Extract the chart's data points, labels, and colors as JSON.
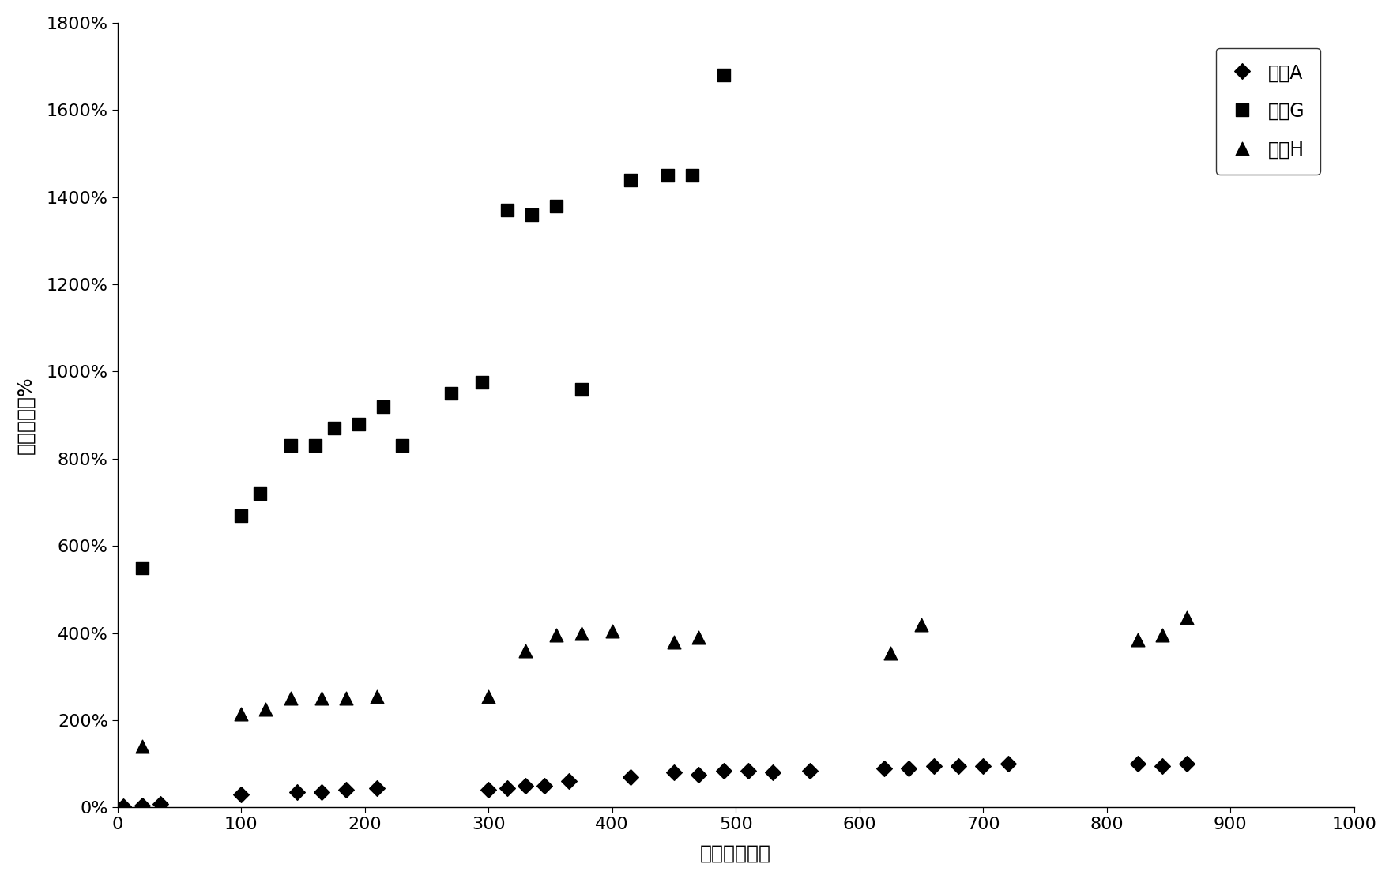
{
  "title": "",
  "xlabel": "时间（小时）",
  "ylabel": "电阱的变化%",
  "xlim": [
    0,
    1000
  ],
  "ylim": [
    0,
    1800
  ],
  "yticks": [
    0,
    200,
    400,
    600,
    800,
    1000,
    1200,
    1400,
    1600,
    1800
  ],
  "xticks": [
    0,
    100,
    200,
    300,
    400,
    500,
    600,
    700,
    800,
    900,
    1000
  ],
  "series_A": {
    "label": "配方A",
    "x": [
      5,
      20,
      35,
      100,
      145,
      165,
      185,
      210,
      300,
      315,
      330,
      345,
      365,
      415,
      450,
      470,
      490,
      510,
      530,
      560,
      620,
      640,
      660,
      680,
      700,
      720,
      825,
      845,
      865
    ],
    "y": [
      2,
      5,
      8,
      30,
      35,
      35,
      40,
      45,
      40,
      45,
      50,
      50,
      60,
      70,
      80,
      75,
      85,
      85,
      80,
      85,
      90,
      90,
      95,
      95,
      95,
      100,
      100,
      95,
      100
    ],
    "marker": "D",
    "color": "black",
    "markersize": 10
  },
  "series_G": {
    "label": "配方G",
    "x": [
      20,
      100,
      115,
      140,
      160,
      175,
      195,
      215,
      230,
      270,
      295,
      315,
      335,
      355,
      375,
      415,
      445,
      465,
      490
    ],
    "y": [
      550,
      670,
      720,
      830,
      830,
      870,
      880,
      920,
      830,
      950,
      975,
      1370,
      1360,
      1380,
      960,
      1440,
      1450,
      1450,
      1680
    ],
    "marker": "s",
    "color": "black",
    "markersize": 11
  },
  "series_H": {
    "label": "配方H",
    "x": [
      20,
      100,
      120,
      140,
      165,
      185,
      210,
      300,
      330,
      355,
      375,
      400,
      450,
      470,
      625,
      650,
      825,
      845,
      865
    ],
    "y": [
      140,
      215,
      225,
      250,
      250,
      250,
      255,
      255,
      360,
      395,
      400,
      405,
      380,
      390,
      355,
      420,
      385,
      395,
      435
    ],
    "marker": "^",
    "color": "black",
    "markersize": 12
  },
  "background_color": "white",
  "tick_font_size": 16,
  "label_font_size": 18,
  "legend_font_size": 17
}
